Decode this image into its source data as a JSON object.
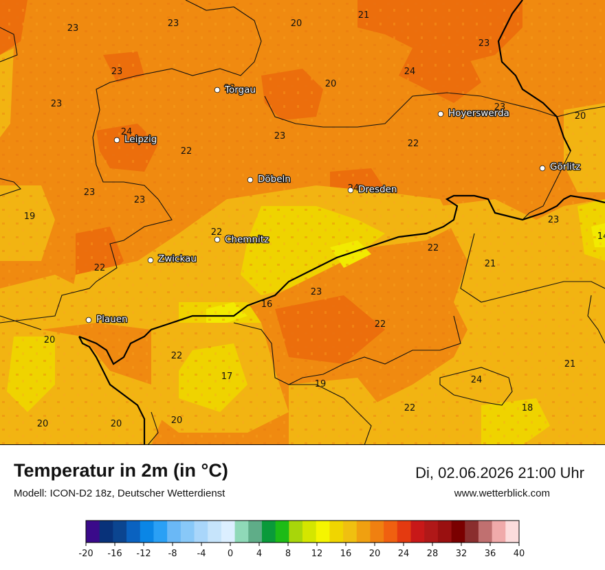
{
  "header": {
    "title": "Temperatur in 2m (in °C)",
    "subtitle": "Modell: ICON-D2 18z, Deutscher Wetterdienst",
    "datetime": "Di, 02.06.2026 21:00 Uhr",
    "website": "www.wetterblick.com"
  },
  "cities": [
    {
      "name": "Torgau",
      "label": "Torgau"
    },
    {
      "name": "Leipzig",
      "label": "Leipzig"
    },
    {
      "name": "Hoyerswerda",
      "label": "Hoyerswerda"
    },
    {
      "name": "Döbeln",
      "label": "Döbeln"
    },
    {
      "name": "Dresden",
      "label": "Dresden"
    },
    {
      "name": "Görlitz",
      "label": "Görlitz"
    },
    {
      "name": "Chemnitz",
      "label": "Chemnitz"
    },
    {
      "name": "Zwickau",
      "label": "Zwickau"
    },
    {
      "name": "Plauen",
      "label": "Plauen"
    }
  ],
  "temperature_labels": [
    "23",
    "23",
    "20",
    "21",
    "23",
    "23",
    "24",
    "20",
    "23",
    "23",
    "23",
    "24",
    "22",
    "23",
    "22",
    "20",
    "23",
    "23",
    "24",
    "19",
    "22",
    "22",
    "23",
    "21",
    "22",
    "16",
    "23",
    "14",
    "22",
    "20",
    "22",
    "17",
    "21",
    "19",
    "24",
    "22",
    "18",
    "20",
    "20",
    "20"
  ],
  "legend": {
    "ticks": [
      "-20",
      "-16",
      "-12",
      "-8",
      "-4",
      "0",
      "4",
      "8",
      "12",
      "16",
      "20",
      "24",
      "28",
      "32",
      "36",
      "40"
    ],
    "colors": [
      "#3a0a8a",
      "#08327a",
      "#0b4590",
      "#0a62c0",
      "#0a86e6",
      "#2aa0f5",
      "#6ab8f6",
      "#88c8f8",
      "#a9d6fa",
      "#c6e4fb",
      "#dcefff",
      "#8fd9b8",
      "#5fad88",
      "#0a9a3a",
      "#1dbb16",
      "#a8d60a",
      "#d4e600",
      "#f5f500",
      "#f0d500",
      "#f0c010",
      "#f0a010",
      "#f08010",
      "#f06010",
      "#e43a10",
      "#c81818",
      "#b01818",
      "#9a1010",
      "#7a0000",
      "#8a2e2e",
      "#c07070",
      "#f0aaaa",
      "#fcdcdc"
    ]
  }
}
